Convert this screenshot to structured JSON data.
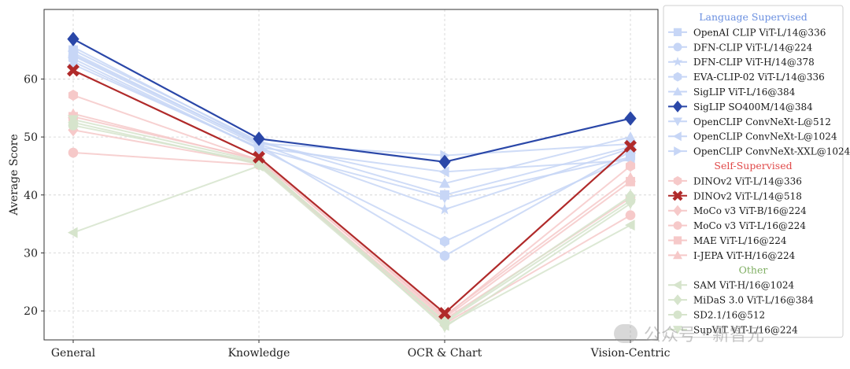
{
  "chart_data": {
    "type": "line",
    "ylabel": "Average Score",
    "xlabel": "",
    "categories": [
      "General",
      "Knowledge",
      "OCR & Chart",
      "Vision-Centric"
    ],
    "ylim": [
      15,
      72
    ],
    "yticks": [
      20,
      30,
      40,
      50,
      60
    ],
    "grid": true,
    "legend_position": "right",
    "groups": [
      {
        "name": "Language Supervised",
        "color": "#6a8fe0",
        "series": [
          {
            "name": "OpenAI CLIP ViT-L/14@336",
            "marker": "square",
            "values": [
              65.0,
              49.3,
              40.0,
              48.3
            ],
            "color": "#c7d6f6",
            "highlight": false
          },
          {
            "name": "DFN-CLIP ViT-L/14@224",
            "marker": "circle",
            "values": [
              64.0,
              48.5,
              29.5,
              47.5
            ],
            "color": "#c7d6f6",
            "highlight": false
          },
          {
            "name": "DFN-CLIP ViT-H/14@378",
            "marker": "star",
            "values": [
              64.5,
              48.8,
              37.5,
              48.0
            ],
            "color": "#c7d6f6",
            "highlight": false
          },
          {
            "name": "EVA-CLIP-02 ViT-L/14@336",
            "marker": "hexagon",
            "values": [
              63.5,
              48.0,
              32.0,
              46.5
            ],
            "color": "#c7d6f6",
            "highlight": false
          },
          {
            "name": "SigLIP ViT-L/16@384",
            "marker": "triangle-up",
            "values": [
              65.5,
              49.0,
              42.0,
              50.0
            ],
            "color": "#c7d6f6",
            "highlight": false
          },
          {
            "name": "SigLIP SO400M/14@384",
            "marker": "diamond",
            "values": [
              66.9,
              49.7,
              45.7,
              53.2
            ],
            "color": "#2a47a8",
            "highlight": true
          },
          {
            "name": "OpenCLIP ConvNeXt-L@512",
            "marker": "triangle-down",
            "values": [
              63.0,
              48.0,
              39.5,
              46.5
            ],
            "color": "#c7d6f6",
            "highlight": false
          },
          {
            "name": "OpenCLIP ConvNeXt-L@1024",
            "marker": "triangle-left",
            "values": [
              62.5,
              48.2,
              44.0,
              46.0
            ],
            "color": "#c7d6f6",
            "highlight": false
          },
          {
            "name": "OpenCLIP ConvNeXt-XXL@1024",
            "marker": "triangle-right",
            "values": [
              64.2,
              48.9,
              46.8,
              48.8
            ],
            "color": "#c7d6f6",
            "highlight": false
          }
        ]
      },
      {
        "name": "Self-Supervised",
        "color": "#e04848",
        "series": [
          {
            "name": "DINOv2 ViT-L/14@336",
            "marker": "hexagon",
            "values": [
              57.2,
              46.0,
              19.0,
              45.0
            ],
            "color": "#f6c9c9",
            "highlight": false
          },
          {
            "name": "DINOv2 ViT-L/14@518",
            "marker": "x",
            "values": [
              61.5,
              46.5,
              19.6,
              48.4
            ],
            "color": "#b02a2a",
            "highlight": true
          },
          {
            "name": "MoCo v3 ViT-B/16@224",
            "marker": "diamond",
            "values": [
              51.2,
              45.5,
              18.5,
              39.5
            ],
            "color": "#f6c9c9",
            "highlight": false
          },
          {
            "name": "MoCo v3 ViT-L/16@224",
            "marker": "circle",
            "values": [
              47.3,
              45.2,
              17.8,
              36.5
            ],
            "color": "#f6c9c9",
            "highlight": false
          },
          {
            "name": "MAE ViT-L/16@224",
            "marker": "square",
            "values": [
              53.5,
              46.2,
              18.8,
              42.3
            ],
            "color": "#f6c9c9",
            "highlight": false
          },
          {
            "name": "I-JEPA ViT-H/16@224",
            "marker": "triangle-up",
            "values": [
              54.0,
              46.0,
              19.2,
              43.0
            ],
            "color": "#f6c9c9",
            "highlight": false
          }
        ]
      },
      {
        "name": "Other",
        "color": "#7fae62",
        "series": [
          {
            "name": "SAM ViT-H/16@1024",
            "marker": "triangle-left",
            "values": [
              33.5,
              45.0,
              17.5,
              34.8
            ],
            "color": "#d6e4cc",
            "highlight": false
          },
          {
            "name": "MiDaS 3.0 ViT-L/16@384",
            "marker": "diamond",
            "values": [
              52.5,
              45.3,
              18.2,
              39.8
            ],
            "color": "#d6e4cc",
            "highlight": false
          },
          {
            "name": "SD2.1/16@512",
            "marker": "circle",
            "values": [
              52.0,
              45.6,
              18.0,
              39.0
            ],
            "color": "#d6e4cc",
            "highlight": false
          },
          {
            "name": "SupViT ViT-L/16@224",
            "marker": "triangle-down",
            "values": [
              53.0,
              45.8,
              17.2,
              38.5
            ],
            "color": "#d6e4cc",
            "highlight": false
          }
        ]
      }
    ]
  },
  "watermark": {
    "text": "公众号 · 新智元",
    "icon": "wechat-logo-icon"
  }
}
